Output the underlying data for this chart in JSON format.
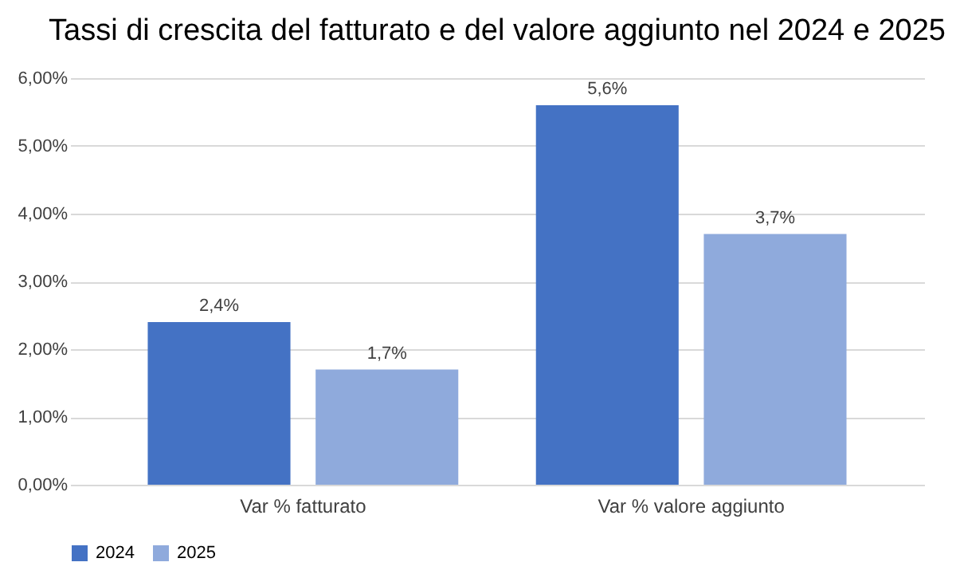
{
  "chart_data": {
    "type": "bar",
    "title": "Tassi di crescita del fatturato e del valore aggiunto nel 2024 e 2025",
    "categories": [
      "Var % fatturato",
      "Var % valore aggiunto"
    ],
    "series": [
      {
        "name": "2024",
        "color": "#4472c4",
        "values": [
          2.4,
          5.6
        ],
        "value_labels": [
          "2,4%",
          "5,6%"
        ]
      },
      {
        "name": "2025",
        "color": "#8faadc",
        "values": [
          1.7,
          3.7
        ],
        "value_labels": [
          "1,7%",
          "3,7%"
        ]
      }
    ],
    "ylim": [
      0,
      6
    ],
    "yticks": [
      {
        "value": 0,
        "label": "0,00%"
      },
      {
        "value": 1,
        "label": "1,00%"
      },
      {
        "value": 2,
        "label": "2,00%"
      },
      {
        "value": 3,
        "label": "3,00%"
      },
      {
        "value": 4,
        "label": "4,00%"
      },
      {
        "value": 5,
        "label": "5,00%"
      },
      {
        "value": 6,
        "label": "6,00%"
      }
    ],
    "grid": "y",
    "legend": "bottom"
  }
}
